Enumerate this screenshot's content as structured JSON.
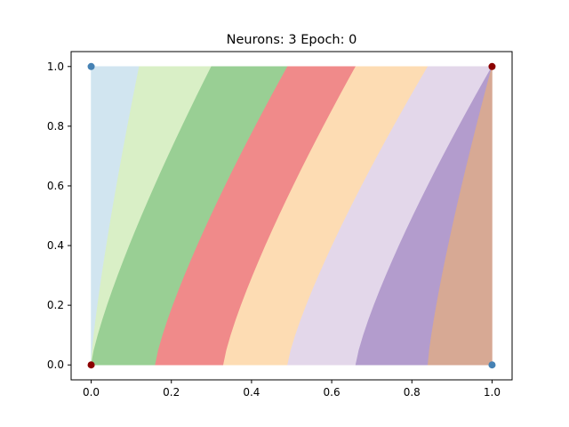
{
  "chart_data": {
    "type": "area",
    "title": "Neurons: 3 Epoch: 0",
    "xlabel": "",
    "ylabel": "",
    "xlim": [
      -0.05,
      1.05
    ],
    "ylim": [
      -0.05,
      1.05
    ],
    "xticks": [
      0.0,
      0.2,
      0.4,
      0.6,
      0.8,
      1.0
    ],
    "xtick_labels": [
      "0.0",
      "0.2",
      "0.4",
      "0.6",
      "0.8",
      "1.0"
    ],
    "yticks": [
      0.0,
      0.2,
      0.4,
      0.6,
      0.8,
      1.0
    ],
    "ytick_labels": [
      "0.0",
      "0.2",
      "0.4",
      "0.6",
      "0.8",
      "1.0"
    ],
    "grid": false,
    "regions": [
      {
        "color": "#d1e5f0",
        "bottom": [
          0.0,
          0.0
        ],
        "top": [
          0.0,
          0.58,
          0.12
        ]
      },
      {
        "color": "#d9efc6",
        "bottom": [
          0.0,
          0.0
        ],
        "top": [
          0.0,
          0.0,
          0.3
        ]
      },
      {
        "color": "#99cf94",
        "bottom": [
          0.0,
          0.0
        ],
        "top": [
          0.16,
          0.16,
          0.49
        ]
      },
      {
        "color": "#f08a8a",
        "bottom": [
          0.0,
          0.0
        ],
        "top": [
          0.33,
          0.33,
          0.66
        ]
      },
      {
        "color": "#fddcb3",
        "bottom": [
          0.0,
          0.0
        ],
        "top": [
          0.49,
          0.49,
          0.84
        ]
      },
      {
        "color": "#e3d7ea",
        "bottom": [
          0.0,
          0.0
        ],
        "top": [
          0.66,
          0.66,
          1.0
        ]
      },
      {
        "color": "#b39ccd",
        "bottom": [
          0.0,
          0.0
        ],
        "top": [
          0.84,
          0.84,
          1.0
        ]
      },
      {
        "color": "#d7a994",
        "bottom": [
          0.0,
          0.0
        ],
        "top": [
          1.0,
          1.0,
          1.0
        ]
      }
    ],
    "boundaries": [
      {
        "x_at_y0": 0.0,
        "x_at_y1": 0.12,
        "y_at_x0": 0.58
      },
      {
        "x_at_y0": 0.0,
        "x_at_y1": 0.3
      },
      {
        "x_at_y0": 0.16,
        "x_at_y1": 0.49
      },
      {
        "x_at_y0": 0.33,
        "x_at_y1": 0.66
      },
      {
        "x_at_y0": 0.49,
        "x_at_y1": 0.84
      },
      {
        "x_at_y0": 0.66,
        "x_at_y1": 1.0,
        "y_at_x1": 0.96
      },
      {
        "x_at_y0": 0.84,
        "x_at_y1": 1.0,
        "y_at_x1": 0.53
      }
    ],
    "points": [
      {
        "x": 0,
        "y": 0,
        "class": 0,
        "color": "#8b0000"
      },
      {
        "x": 0,
        "y": 1,
        "class": 1,
        "color": "#4682b4"
      },
      {
        "x": 1,
        "y": 0,
        "class": 1,
        "color": "#4682b4"
      },
      {
        "x": 1,
        "y": 1,
        "class": 0,
        "color": "#8b0000"
      }
    ]
  }
}
